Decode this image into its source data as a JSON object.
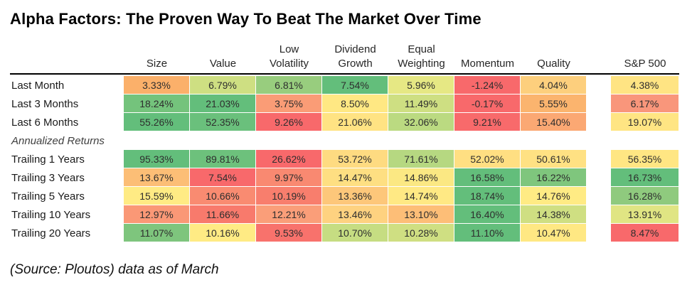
{
  "title": "Alpha Factors: The Proven Way To Beat The Market Over Time",
  "footer": "(Source: Ploutos) data as of March",
  "table": {
    "factor_headers": [
      {
        "key": "size",
        "lines": [
          "Size"
        ]
      },
      {
        "key": "value",
        "lines": [
          "Value"
        ]
      },
      {
        "key": "low-volatility",
        "lines": [
          "Low",
          "Volatility"
        ]
      },
      {
        "key": "dividend-growth",
        "lines": [
          "Dividend",
          "Growth"
        ]
      },
      {
        "key": "equal-weighting",
        "lines": [
          "Equal",
          "Weighting"
        ]
      },
      {
        "key": "momentum",
        "lines": [
          "Momentum"
        ]
      },
      {
        "key": "quality",
        "lines": [
          "Quality"
        ]
      }
    ],
    "sp_header": {
      "key": "sp-500",
      "lines": [
        "S&P 500"
      ]
    },
    "rows": [
      {
        "label": "Last Month",
        "cells": [
          {
            "value": "3.33%",
            "color": "#FBB06A"
          },
          {
            "value": "6.79%",
            "color": "#CEDF82"
          },
          {
            "value": "6.81%",
            "color": "#98CD7E"
          },
          {
            "value": "7.54%",
            "color": "#63BE7B"
          },
          {
            "value": "5.96%",
            "color": "#E6E884"
          },
          {
            "value": "-1.24%",
            "color": "#F8696B"
          },
          {
            "value": "4.04%",
            "color": "#FDCF7D"
          }
        ],
        "sp": {
          "value": "4.38%",
          "color": "#FFE483"
        }
      },
      {
        "label": "Last 3 Months",
        "cells": [
          {
            "value": "18.24%",
            "color": "#74C37C"
          },
          {
            "value": "21.03%",
            "color": "#63BE7B"
          },
          {
            "value": "3.75%",
            "color": "#FA9C76"
          },
          {
            "value": "8.50%",
            "color": "#FFE883"
          },
          {
            "value": "11.49%",
            "color": "#CEDF82"
          },
          {
            "value": "-0.17%",
            "color": "#F8696B"
          },
          {
            "value": "5.55%",
            "color": "#FBB46E"
          }
        ],
        "sp": {
          "value": "6.17%",
          "color": "#F9967B"
        }
      },
      {
        "label": "Last 6 Months",
        "cells": [
          {
            "value": "55.26%",
            "color": "#63BE7B"
          },
          {
            "value": "52.35%",
            "color": "#6AC07C"
          },
          {
            "value": "9.26%",
            "color": "#F8696B"
          },
          {
            "value": "21.06%",
            "color": "#FFE383"
          },
          {
            "value": "32.06%",
            "color": "#BBDA81"
          },
          {
            "value": "9.21%",
            "color": "#F86A6B"
          },
          {
            "value": "15.40%",
            "color": "#FBA873"
          }
        ],
        "sp": {
          "value": "19.07%",
          "color": "#FFE583"
        }
      },
      {
        "label": "Annualized Returns",
        "section": true
      },
      {
        "label": "Trailing 1 Years",
        "cells": [
          {
            "value": "95.33%",
            "color": "#63BE7B"
          },
          {
            "value": "89.81%",
            "color": "#6DC17C"
          },
          {
            "value": "26.62%",
            "color": "#F8696B"
          },
          {
            "value": "53.72%",
            "color": "#FEDB81"
          },
          {
            "value": "71.61%",
            "color": "#B6D881"
          },
          {
            "value": "52.02%",
            "color": "#FFDF82"
          },
          {
            "value": "50.61%",
            "color": "#FFE183"
          }
        ],
        "sp": {
          "value": "56.35%",
          "color": "#FFE683"
        }
      },
      {
        "label": "Trailing 3 Years",
        "cells": [
          {
            "value": "13.67%",
            "color": "#FCBE76"
          },
          {
            "value": "7.54%",
            "color": "#F8696B"
          },
          {
            "value": "9.97%",
            "color": "#F98971"
          },
          {
            "value": "14.47%",
            "color": "#FEDF82"
          },
          {
            "value": "14.86%",
            "color": "#FBE883"
          },
          {
            "value": "16.58%",
            "color": "#63BE7B"
          },
          {
            "value": "16.22%",
            "color": "#7FC67D"
          }
        ],
        "sp": {
          "value": "16.73%",
          "color": "#63BE7B"
        }
      },
      {
        "label": "Trailing 5 Years",
        "cells": [
          {
            "value": "15.59%",
            "color": "#FFEB84"
          },
          {
            "value": "10.66%",
            "color": "#F98B71"
          },
          {
            "value": "10.19%",
            "color": "#F87E6D"
          },
          {
            "value": "13.36%",
            "color": "#FDC77A"
          },
          {
            "value": "14.74%",
            "color": "#FFE984"
          },
          {
            "value": "18.74%",
            "color": "#63BE7B"
          },
          {
            "value": "14.76%",
            "color": "#FFEB84"
          }
        ],
        "sp": {
          "value": "16.28%",
          "color": "#8FCA7E"
        }
      },
      {
        "label": "Trailing 10 Years",
        "cells": [
          {
            "value": "12.97%",
            "color": "#FA9876"
          },
          {
            "value": "11.66%",
            "color": "#F87A6C"
          },
          {
            "value": "12.21%",
            "color": "#FA9E79"
          },
          {
            "value": "13.46%",
            "color": "#FED280"
          },
          {
            "value": "13.10%",
            "color": "#FDBE77"
          },
          {
            "value": "16.40%",
            "color": "#63BE7B"
          },
          {
            "value": "14.38%",
            "color": "#CFDF82"
          }
        ],
        "sp": {
          "value": "13.91%",
          "color": "#E0E583"
        }
      },
      {
        "label": "Trailing 20 Years",
        "cells": [
          {
            "value": "11.07%",
            "color": "#7EC57D"
          },
          {
            "value": "10.16%",
            "color": "#FFEB84"
          },
          {
            "value": "9.53%",
            "color": "#F8726C"
          },
          {
            "value": "10.70%",
            "color": "#C6DD82"
          },
          {
            "value": "10.28%",
            "color": "#CFDF82"
          },
          {
            "value": "11.10%",
            "color": "#63BE7B"
          },
          {
            "value": "10.47%",
            "color": "#FFE883"
          }
        ],
        "sp": {
          "value": "8.47%",
          "color": "#F8696B"
        }
      }
    ]
  },
  "chart_data": {
    "type": "heatmap",
    "title": "Alpha Factors: The Proven Way To Beat The Market Over Time",
    "columns": [
      "Size",
      "Value",
      "Low Volatility",
      "Dividend Growth",
      "Equal Weighting",
      "Momentum",
      "Quality",
      "S&P 500"
    ],
    "rows": [
      "Last Month",
      "Last 3 Months",
      "Last 6 Months",
      "Trailing 1 Years",
      "Trailing 3 Years",
      "Trailing 5 Years",
      "Trailing 10 Years",
      "Trailing 20 Years"
    ],
    "row_group_label": "Annualized Returns",
    "row_group_members": [
      "Trailing 1 Years",
      "Trailing 3 Years",
      "Trailing 5 Years",
      "Trailing 10 Years",
      "Trailing 20 Years"
    ],
    "values_pct": [
      [
        3.33,
        6.79,
        6.81,
        7.54,
        5.96,
        -1.24,
        4.04,
        4.38
      ],
      [
        18.24,
        21.03,
        3.75,
        8.5,
        11.49,
        -0.17,
        5.55,
        6.17
      ],
      [
        55.26,
        52.35,
        9.26,
        21.06,
        32.06,
        9.21,
        15.4,
        19.07
      ],
      [
        95.33,
        89.81,
        26.62,
        53.72,
        71.61,
        52.02,
        50.61,
        56.35
      ],
      [
        13.67,
        7.54,
        9.97,
        14.47,
        14.86,
        16.58,
        16.22,
        16.73
      ],
      [
        15.59,
        10.66,
        10.19,
        13.36,
        14.74,
        18.74,
        14.76,
        16.28
      ],
      [
        12.97,
        11.66,
        12.21,
        13.46,
        13.1,
        16.4,
        14.38,
        13.91
      ],
      [
        11.07,
        10.16,
        9.53,
        10.7,
        10.28,
        11.1,
        10.47,
        8.47
      ]
    ],
    "color_scale": {
      "low": "#F8696B",
      "mid": "#FFEB84",
      "high": "#63BE7B"
    },
    "source_note": "(Source: Ploutos) data as of March"
  }
}
